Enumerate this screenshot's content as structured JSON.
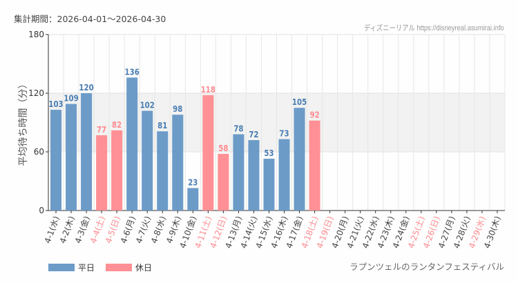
{
  "header": {
    "period": "集計期間：2026-04-01～2026-04-30",
    "credit": "ディズニーリアル https://disneyreal.asumirai.info"
  },
  "series_title": "ラプンツェルのランタンフェスティバル",
  "legend": {
    "weekday": "平日",
    "holiday": "休日"
  },
  "colors": {
    "weekday": "#6c9bc8",
    "holiday": "#ff9095",
    "holiday_label": "#ff8a90",
    "band": "#f1f2f1"
  },
  "chart_data": {
    "type": "bar",
    "ylabel": "平均待ち時間（分）",
    "ylim": [
      0,
      180
    ],
    "yticks": [
      0,
      60,
      120,
      180
    ],
    "grid": true,
    "shaded_band": [
      60,
      120
    ],
    "legend_position": "bottom-left",
    "categories": [
      "4-1(水)",
      "4-2(木)",
      "4-3(金)",
      "4-4(土)",
      "4-5(日)",
      "4-6(月)",
      "4-7(火)",
      "4-8(水)",
      "4-9(木)",
      "4-10(金)",
      "4-11(土)",
      "4-12(日)",
      "4-13(月)",
      "4-14(火)",
      "4-15(水)",
      "4-16(木)",
      "4-17(金)",
      "4-18(土)",
      "4-19(日)",
      "4-20(月)",
      "4-21(火)",
      "4-22(水)",
      "4-23(木)",
      "4-24(金)",
      "4-25(土)",
      "4-26(日)",
      "4-27(月)",
      "4-28(火)",
      "4-29(水)",
      "4-30(木)"
    ],
    "holiday": [
      false,
      false,
      false,
      true,
      true,
      false,
      false,
      false,
      false,
      false,
      true,
      true,
      false,
      false,
      false,
      false,
      false,
      true,
      true,
      false,
      false,
      false,
      false,
      false,
      true,
      true,
      false,
      false,
      true,
      false
    ],
    "values": [
      103,
      109,
      120,
      77,
      82,
      136,
      102,
      81,
      98,
      23,
      118,
      58,
      78,
      72,
      53,
      73,
      105,
      92,
      null,
      null,
      null,
      null,
      null,
      null,
      null,
      null,
      null,
      null,
      null,
      null
    ]
  }
}
